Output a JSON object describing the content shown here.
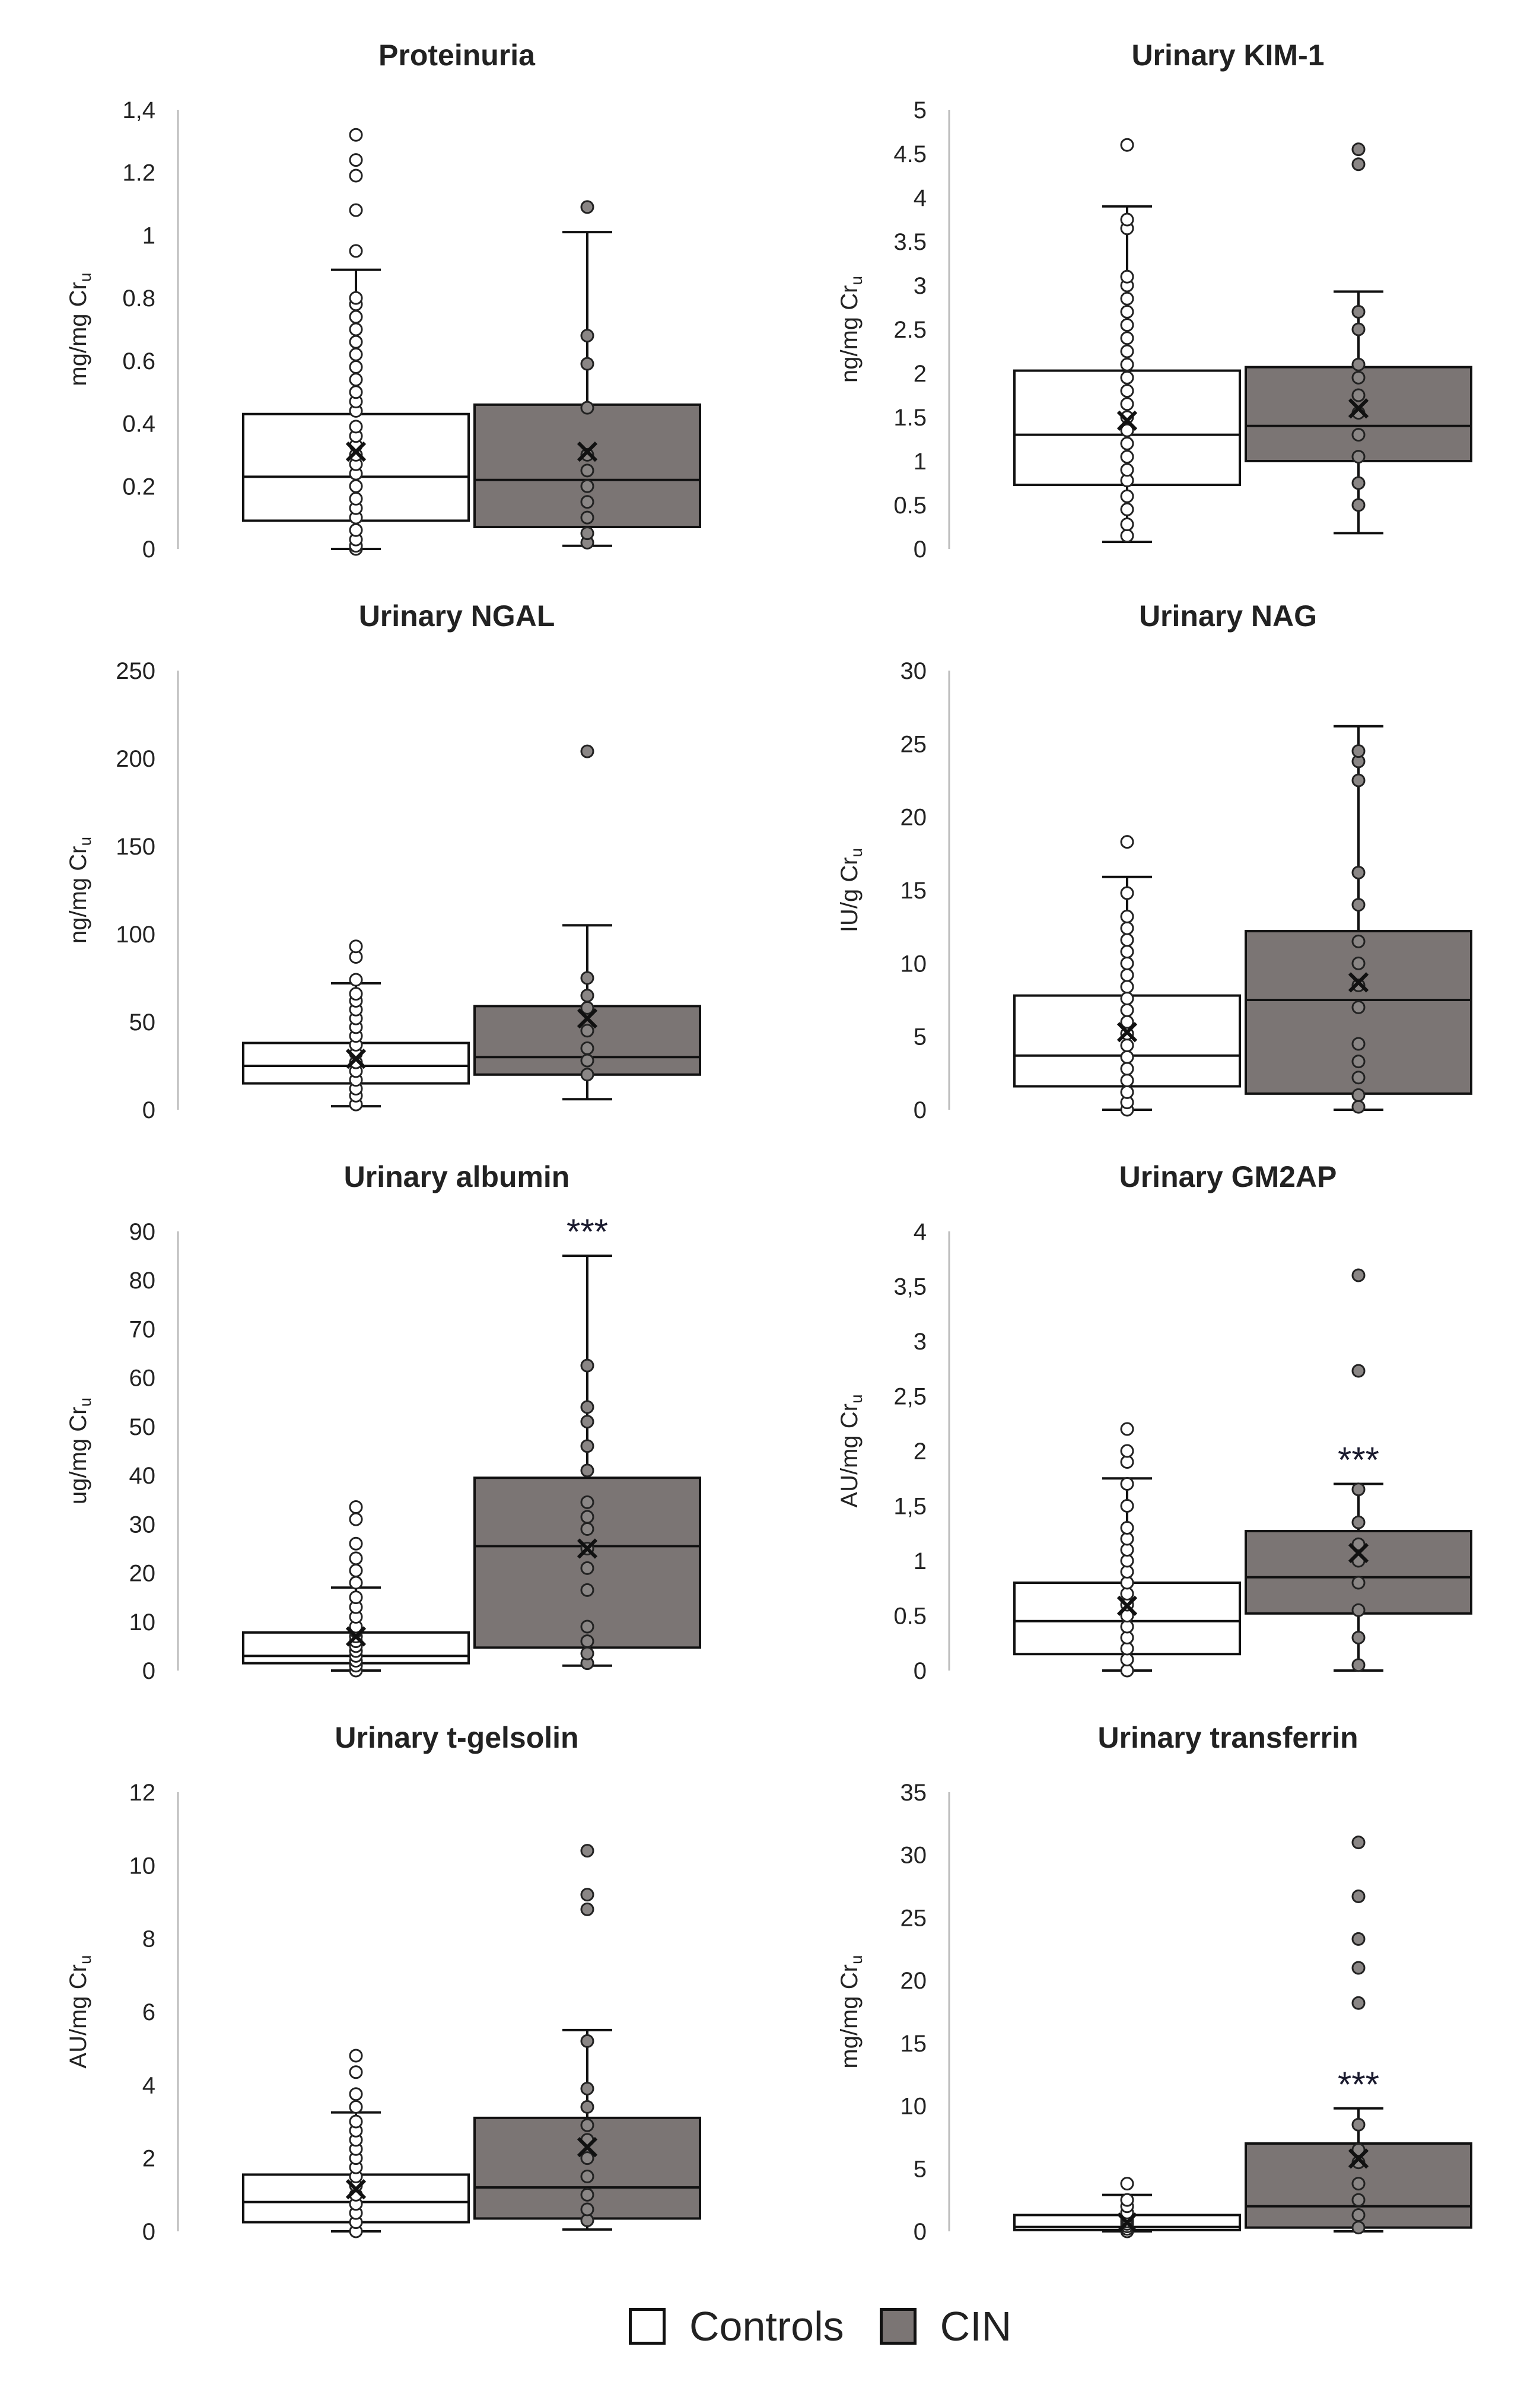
{
  "colors": {
    "controls": "#ffffff",
    "cin": "#7b7574",
    "stroke": "#111111",
    "axis": "#bcbcbc",
    "text": "#222222"
  },
  "legend": {
    "controls": "Controls",
    "cin": "CIN"
  },
  "chart_data": [
    {
      "type": "box",
      "title": "Proteinuria",
      "ylabel": "mg/mg Cr",
      "ylabel_sub": "u",
      "ylim": [
        0,
        1.4
      ],
      "yticks": [
        0,
        0.2,
        0.4,
        0.6,
        0.8,
        1,
        1.2,
        1.4
      ],
      "ytick_labels": [
        "0",
        "0.2",
        "0.4",
        "0.6",
        "0.8",
        "1",
        "1.2",
        "1,4"
      ],
      "significance": [
        null,
        null
      ],
      "series": [
        {
          "name": "Controls",
          "whisker_low": 0,
          "q1": 0.09,
          "median": 0.23,
          "q3": 0.43,
          "whisker_high": 0.89,
          "mean": 0.31,
          "points": [
            0,
            0.01,
            0.03,
            0.06,
            0.1,
            0.13,
            0.16,
            0.2,
            0.24,
            0.27,
            0.3,
            0.33,
            0.36,
            0.39,
            0.44,
            0.47,
            0.5,
            0.54,
            0.58,
            0.62,
            0.66,
            0.7,
            0.74,
            0.78,
            0.8
          ],
          "outliers": [
            0.95,
            1.08,
            1.19,
            1.24,
            1.32
          ]
        },
        {
          "name": "CIN",
          "whisker_low": 0.01,
          "q1": 0.07,
          "median": 0.22,
          "q3": 0.46,
          "whisker_high": 1.01,
          "mean": 0.31,
          "points": [
            0.02,
            0.05,
            0.1,
            0.15,
            0.2,
            0.25,
            0.3,
            0.45,
            0.59,
            0.68
          ],
          "outliers": [
            1.09
          ]
        }
      ]
    },
    {
      "type": "box",
      "title": "Urinary KIM-1",
      "ylabel": "ng/mg Cr",
      "ylabel_sub": "u",
      "ylim": [
        0,
        5
      ],
      "yticks": [
        0,
        0.5,
        1,
        1.5,
        2,
        2.5,
        3,
        3.5,
        4,
        4.5,
        5
      ],
      "ytick_labels": [
        "0",
        "0.5",
        "1",
        "1.5",
        "2",
        "2.5",
        "3",
        "3.5",
        "4",
        "4.5",
        "5"
      ],
      "significance": [
        null,
        null
      ],
      "series": [
        {
          "name": "Controls",
          "whisker_low": 0.08,
          "q1": 0.73,
          "median": 1.3,
          "q3": 2.03,
          "whisker_high": 3.9,
          "mean": 1.46,
          "points": [
            0.15,
            0.28,
            0.45,
            0.6,
            0.78,
            0.9,
            1.05,
            1.2,
            1.35,
            1.5,
            1.65,
            1.8,
            1.95,
            2.1,
            2.25,
            2.4,
            2.55,
            2.7,
            2.85,
            3.0,
            3.1,
            3.65,
            3.75
          ],
          "outliers": [
            4.6
          ]
        },
        {
          "name": "CIN",
          "whisker_low": 0.18,
          "q1": 1.0,
          "median": 1.4,
          "q3": 2.07,
          "whisker_high": 2.93,
          "mean": 1.6,
          "points": [
            0.5,
            0.75,
            1.05,
            1.3,
            1.55,
            1.75,
            1.95,
            2.1,
            2.5,
            2.7
          ],
          "outliers": [
            4.38,
            4.55
          ]
        }
      ]
    },
    {
      "type": "box",
      "title": "Urinary NGAL",
      "ylabel": "ng/mg Cr",
      "ylabel_sub": "u",
      "ylim": [
        0,
        250
      ],
      "yticks": [
        0,
        50,
        100,
        150,
        200,
        250
      ],
      "ytick_labels": [
        "0",
        "50",
        "100",
        "150",
        "200",
        "250"
      ],
      "significance": [
        null,
        null
      ],
      "series": [
        {
          "name": "Controls",
          "whisker_low": 2,
          "q1": 15,
          "median": 25,
          "q3": 38,
          "whisker_high": 72,
          "mean": 29,
          "points": [
            3,
            8,
            12,
            17,
            22,
            27,
            32,
            37,
            42,
            47,
            52,
            57,
            62,
            66,
            74
          ],
          "outliers": [
            87,
            93
          ]
        },
        {
          "name": "CIN",
          "whisker_low": 6,
          "q1": 20,
          "median": 30,
          "q3": 59,
          "whisker_high": 105,
          "mean": 52,
          "points": [
            20,
            28,
            35,
            45,
            58,
            65,
            75
          ],
          "outliers": [
            204
          ]
        }
      ]
    },
    {
      "type": "box",
      "title": "Urinary NAG",
      "ylabel": "IU/g Cr",
      "ylabel_sub": "u",
      "ylim": [
        0,
        30
      ],
      "yticks": [
        0,
        5,
        10,
        15,
        20,
        25,
        30
      ],
      "ytick_labels": [
        "0",
        "5",
        "10",
        "15",
        "20",
        "25",
        "30"
      ],
      "significance": [
        null,
        null
      ],
      "series": [
        {
          "name": "Controls",
          "whisker_low": 0,
          "q1": 1.6,
          "median": 3.7,
          "q3": 7.8,
          "whisker_high": 15.9,
          "mean": 5.3,
          "points": [
            0,
            0.5,
            1.2,
            2,
            2.8,
            3.6,
            4.4,
            5.2,
            6,
            6.8,
            7.6,
            8.4,
            9.2,
            10,
            10.8,
            11.6,
            12.4,
            13.2,
            14.8
          ],
          "outliers": [
            18.3
          ]
        },
        {
          "name": "CIN",
          "whisker_low": 0,
          "q1": 1.1,
          "median": 7.5,
          "q3": 12.2,
          "whisker_high": 26.2,
          "mean": 8.7,
          "points": [
            0.2,
            1,
            2.2,
            3.3,
            4.5,
            7,
            8.5,
            10,
            11.5,
            14,
            16.2,
            22.5,
            23.8,
            24.5
          ],
          "outliers": []
        }
      ]
    },
    {
      "type": "box",
      "title": "Urinary albumin",
      "ylabel": "ug/mg Cr",
      "ylabel_sub": "u",
      "ylim": [
        0,
        90
      ],
      "yticks": [
        0,
        10,
        20,
        30,
        40,
        50,
        60,
        70,
        80,
        90
      ],
      "ytick_labels": [
        "0",
        "10",
        "20",
        "30",
        "40",
        "50",
        "60",
        "70",
        "80",
        "90"
      ],
      "significance": [
        null,
        "***"
      ],
      "series": [
        {
          "name": "Controls",
          "whisker_low": 0,
          "q1": 1.5,
          "median": 3,
          "q3": 7.8,
          "whisker_high": 17,
          "mean": 7,
          "points": [
            0,
            1,
            2,
            3,
            4,
            5,
            6,
            7,
            8,
            9,
            11,
            13,
            15,
            18,
            20.5,
            23,
            26
          ],
          "outliers": [
            31,
            33.5
          ]
        },
        {
          "name": "CIN",
          "whisker_low": 1,
          "q1": 4.7,
          "median": 25.5,
          "q3": 39.5,
          "whisker_high": 85,
          "mean": 25,
          "points": [
            1.5,
            3.5,
            6,
            9,
            16.5,
            21,
            25,
            29,
            31.5,
            34.5,
            41,
            46,
            51,
            54,
            62.5
          ],
          "outliers": []
        }
      ]
    },
    {
      "type": "box",
      "title": "Urinary GM2AP",
      "ylabel": "AU/mg Cr",
      "ylabel_sub": "u",
      "ylim": [
        0,
        4
      ],
      "yticks": [
        0,
        0.5,
        1,
        1.5,
        2,
        2.5,
        3,
        3.5,
        4
      ],
      "ytick_labels": [
        "0",
        "0.5",
        "1",
        "1,5",
        "2",
        "2,5",
        "3",
        "3,5",
        "4"
      ],
      "significance": [
        null,
        "***"
      ],
      "series": [
        {
          "name": "Controls",
          "whisker_low": 0,
          "q1": 0.15,
          "median": 0.45,
          "q3": 0.8,
          "whisker_high": 1.75,
          "mean": 0.59,
          "points": [
            0,
            0.1,
            0.2,
            0.3,
            0.4,
            0.5,
            0.6,
            0.7,
            0.8,
            0.9,
            1.0,
            1.1,
            1.2,
            1.3,
            1.5,
            1.7,
            1.9,
            2.0
          ],
          "outliers": [
            2.2
          ]
        },
        {
          "name": "CIN",
          "whisker_low": 0,
          "q1": 0.52,
          "median": 0.85,
          "q3": 1.27,
          "whisker_high": 1.7,
          "mean": 1.07,
          "points": [
            0.05,
            0.3,
            0.55,
            0.8,
            1.0,
            1.15,
            1.35,
            1.65
          ],
          "outliers": [
            2.73,
            3.6
          ]
        }
      ]
    },
    {
      "type": "box",
      "title": "Urinary t-gelsolin",
      "ylabel": "AU/mg Cr",
      "ylabel_sub": "u",
      "ylim": [
        0,
        12
      ],
      "yticks": [
        0,
        2,
        4,
        6,
        8,
        10,
        12
      ],
      "ytick_labels": [
        "0",
        "2",
        "4",
        "6",
        "8",
        "10",
        "12"
      ],
      "significance": [
        null,
        null
      ],
      "series": [
        {
          "name": "Controls",
          "whisker_low": 0,
          "q1": 0.25,
          "median": 0.8,
          "q3": 1.55,
          "whisker_high": 3.25,
          "mean": 1.15,
          "points": [
            0,
            0.25,
            0.5,
            0.75,
            1.0,
            1.25,
            1.5,
            1.75,
            2.0,
            2.25,
            2.5,
            2.75,
            3.0,
            3.4,
            3.75
          ],
          "outliers": [
            4.35,
            4.8
          ]
        },
        {
          "name": "CIN",
          "whisker_low": 0.05,
          "q1": 0.35,
          "median": 1.2,
          "q3": 3.1,
          "whisker_high": 5.5,
          "mean": 2.3,
          "points": [
            0.3,
            0.6,
            1.0,
            1.5,
            2.0,
            2.5,
            2.9,
            3.4,
            3.9,
            5.2
          ],
          "outliers": [
            8.8,
            9.2,
            10.4
          ]
        }
      ]
    },
    {
      "type": "box",
      "title": "Urinary transferrin",
      "ylabel": "mg/mg Cr",
      "ylabel_sub": "u",
      "ylim": [
        0,
        35
      ],
      "yticks": [
        0,
        5,
        10,
        15,
        20,
        25,
        30,
        35
      ],
      "ytick_labels": [
        "0",
        "5",
        "10",
        "15",
        "20",
        "25",
        "30",
        "35"
      ],
      "significance": [
        null,
        "***"
      ],
      "series": [
        {
          "name": "Controls",
          "whisker_low": 0,
          "q1": 0.1,
          "median": 0.35,
          "q3": 1.3,
          "whisker_high": 2.9,
          "mean": 0.7,
          "points": [
            0,
            0.2,
            0.4,
            0.6,
            0.8,
            1.0,
            1.2,
            1.5,
            2.0,
            2.5
          ],
          "outliers": [
            3.8
          ]
        },
        {
          "name": "CIN",
          "whisker_low": 0,
          "q1": 0.3,
          "median": 2.0,
          "q3": 7.0,
          "whisker_high": 9.8,
          "mean": 5.8,
          "points": [
            0.3,
            1.3,
            2.5,
            3.8,
            5.5,
            6.5,
            8.5
          ],
          "outliers": [
            18.2,
            21,
            23.3,
            26.7,
            31
          ]
        }
      ]
    }
  ]
}
